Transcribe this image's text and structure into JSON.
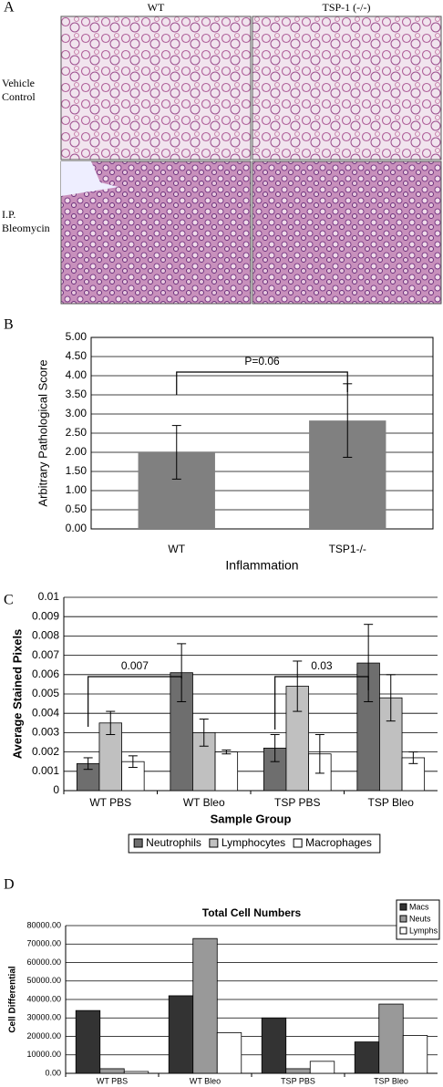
{
  "panel_labels": [
    "A",
    "B",
    "C",
    "D"
  ],
  "micrographs": {
    "columns": [
      "WT",
      "TSP-1 (-/-)"
    ],
    "rows": [
      "Vehicle Control",
      "I.P. Bleomycin"
    ]
  },
  "chart_data": [
    {
      "type": "bar",
      "ylabel": "Arbitrary Pathological Score",
      "xlabel": "Inflammation",
      "categories": [
        "WT",
        "TSP1-/-"
      ],
      "values": [
        2.0,
        2.83
      ],
      "errors": [
        0.7,
        0.96
      ],
      "color": "#808080",
      "ylim": [
        0,
        5
      ],
      "yticks": [
        {
          "value": 0,
          "label": "0.00"
        },
        {
          "value": 0.5,
          "label": "0.50"
        },
        {
          "value": 1,
          "label": "1.00"
        },
        {
          "value": 1.5,
          "label": "1.50"
        },
        {
          "value": 2,
          "label": "2.00"
        },
        {
          "value": 2.5,
          "label": "2.50"
        },
        {
          "value": 3,
          "label": "3.00"
        },
        {
          "value": 3.5,
          "label": "3.50"
        },
        {
          "value": 4,
          "label": "4.00"
        },
        {
          "value": 4.5,
          "label": "4.50"
        },
        {
          "value": 5,
          "label": "5.00"
        }
      ],
      "grid": true,
      "annotations": [
        "P=0.06"
      ]
    },
    {
      "type": "bar",
      "ylabel": "Average Stained Pixels",
      "xlabel": "Sample Group",
      "categories": [
        "WT PBS",
        "WT Bleo",
        "TSP PBS",
        "TSP Bleo"
      ],
      "series": [
        {
          "name": "Neutrophils",
          "color": "#6e6e6e",
          "values": [
            0.0014,
            0.0061,
            0.0022,
            0.0066
          ],
          "errors": [
            0.0003,
            0.0015,
            0.0007,
            0.002
          ]
        },
        {
          "name": "Lymphocytes",
          "color": "#c0c0c0",
          "values": [
            0.0035,
            0.003,
            0.0054,
            0.0048
          ],
          "errors": [
            0.0006,
            0.0007,
            0.0013,
            0.0012
          ]
        },
        {
          "name": "Macrophages",
          "color": "#ffffff",
          "values": [
            0.0015,
            0.002,
            0.0019,
            0.0017
          ],
          "errors": [
            0.0003,
            0.0001,
            0.001,
            0.0003
          ]
        }
      ],
      "ylim": [
        0,
        0.01
      ],
      "yticks": [
        0,
        0.001,
        0.002,
        0.003,
        0.004,
        0.005,
        0.006,
        0.007,
        0.008,
        0.009,
        0.01
      ],
      "grid": true,
      "legend": "bottom",
      "annotations": [
        "0.007",
        "0.03"
      ]
    },
    {
      "type": "bar",
      "title": "Total Cell Numbers",
      "ylabel": "Cell Differential",
      "categories": [
        "WT PBS",
        "WT Bleo",
        "TSP PBS",
        "TSP Bleo"
      ],
      "series": [
        {
          "name": "Macs",
          "color": "#333333",
          "values": [
            34000,
            42000,
            30000,
            17000
          ]
        },
        {
          "name": "Neuts",
          "color": "#999999",
          "values": [
            2500,
            73000,
            2500,
            37500
          ]
        },
        {
          "name": "Lymphs",
          "color": "#ffffff",
          "values": [
            1000,
            22000,
            6500,
            20500
          ]
        }
      ],
      "ylim": [
        0,
        80000
      ],
      "yticks": [
        {
          "value": 0,
          "label": "0.00"
        },
        {
          "value": 10000,
          "label": "10000.00"
        },
        {
          "value": 20000,
          "label": "20000.00"
        },
        {
          "value": 30000,
          "label": "30000.00"
        },
        {
          "value": 40000,
          "label": "40000.00"
        },
        {
          "value": 50000,
          "label": "50000.00"
        },
        {
          "value": 60000,
          "label": "60000.00"
        },
        {
          "value": 70000,
          "label": "70000.00"
        },
        {
          "value": 80000,
          "label": "80000.00"
        }
      ],
      "grid": true,
      "legend": "top-right"
    }
  ]
}
